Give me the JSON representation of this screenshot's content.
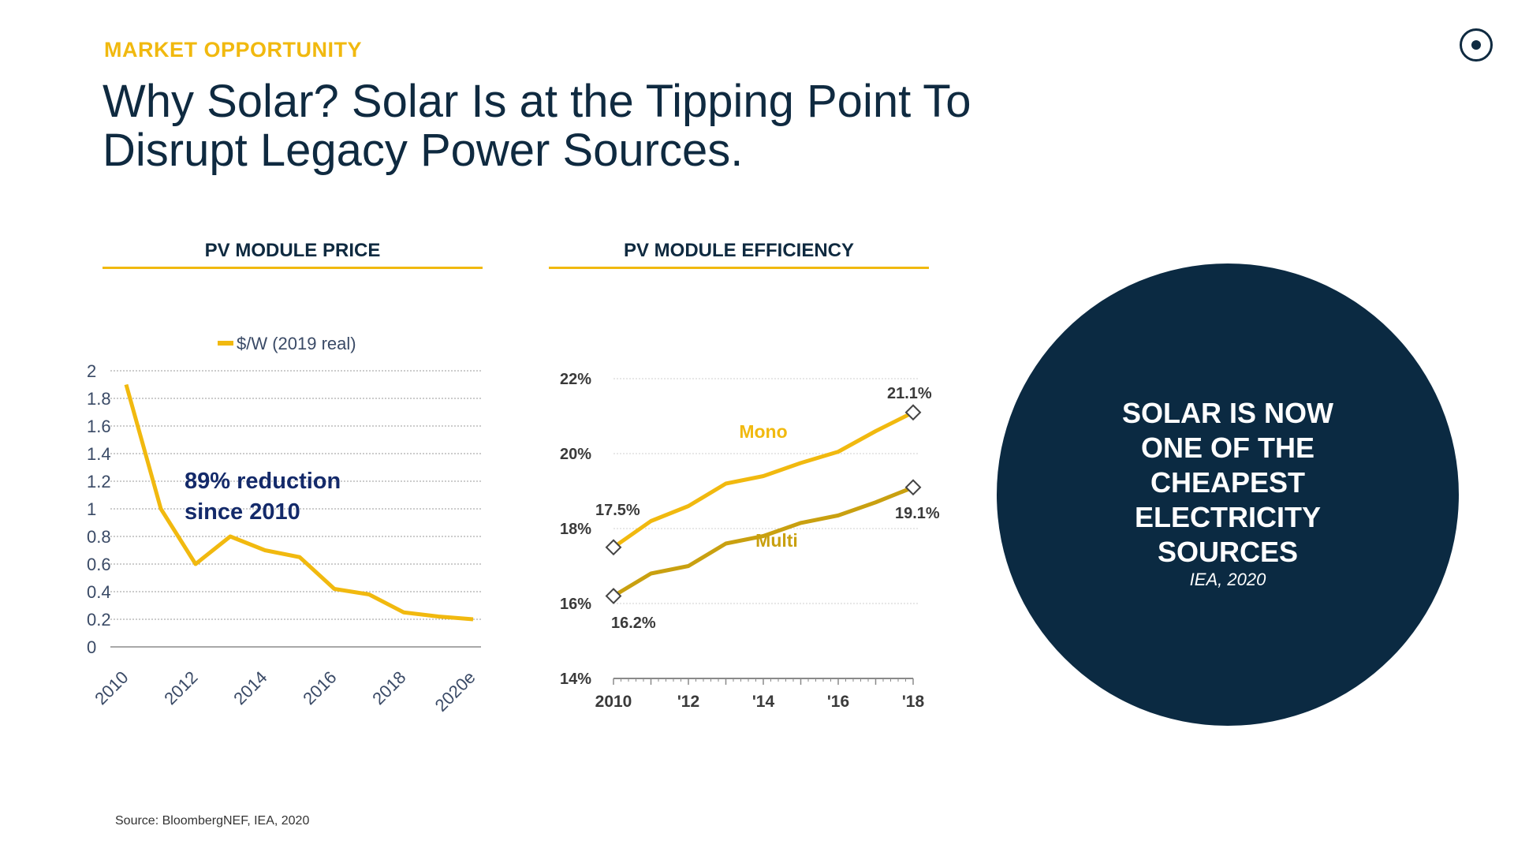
{
  "header": {
    "eyebrow": "MARKET OPPORTUNITY",
    "title_line1": "Why Solar? Solar Is at the Tipping Point To",
    "title_line2": "Disrupt Legacy Power Sources."
  },
  "colors": {
    "accent": "#f1b90f",
    "navy": "#0f2a40",
    "multi_line": "#c9a010",
    "circle": "#0b2a42"
  },
  "panels": {
    "price_title": "PV MODULE PRICE",
    "efficiency_title": "PV MODULE EFFICIENCY"
  },
  "callout": {
    "text": "SOLAR IS NOW ONE OF THE CHEAPEST ELECTRICITY SOURCES",
    "source": "IEA, 2020"
  },
  "footer": {
    "source": "Source: BloombergNEF, IEA, 2020"
  },
  "chart_data": [
    {
      "type": "line",
      "title": "PV MODULE PRICE",
      "series": [
        {
          "name": "$/W (2019 real)",
          "x": [
            2010,
            2011,
            2012,
            2013,
            2014,
            2015,
            2016,
            2017,
            2018,
            2019,
            2020
          ],
          "values": [
            1.9,
            1.0,
            0.6,
            0.8,
            0.7,
            0.65,
            0.42,
            0.38,
            0.25,
            0.22,
            0.2
          ]
        }
      ],
      "x_tick_labels": [
        "2010",
        "2012",
        "2014",
        "2016",
        "2018",
        "2020e"
      ],
      "y_ticks": [
        0,
        0.2,
        0.4,
        0.6,
        0.8,
        1,
        1.2,
        1.4,
        1.6,
        1.8,
        2
      ],
      "ylim": [
        0,
        2
      ],
      "grid": true,
      "legend_position": "top",
      "annotations": [
        "89% reduction",
        "since 2010"
      ]
    },
    {
      "type": "line",
      "title": "PV MODULE EFFICIENCY",
      "x": [
        2010,
        2011,
        2012,
        2013,
        2014,
        2015,
        2016,
        2017,
        2018
      ],
      "series": [
        {
          "name": "Mono",
          "values": [
            17.5,
            18.2,
            18.6,
            19.2,
            19.4,
            19.75,
            20.05,
            20.6,
            21.1
          ]
        },
        {
          "name": "Multi",
          "values": [
            16.2,
            16.8,
            17.0,
            17.6,
            17.8,
            18.15,
            18.35,
            18.7,
            19.1
          ]
        }
      ],
      "x_tick_labels": [
        "2010",
        "'12",
        "'14",
        "'16",
        "'18"
      ],
      "y_tick_labels": [
        "14%",
        "16%",
        "18%",
        "20%",
        "22%"
      ],
      "ylim": [
        14,
        22
      ],
      "grid": true,
      "data_labels": [
        "17.5%",
        "21.1%",
        "16.2%",
        "19.1%"
      ]
    }
  ]
}
